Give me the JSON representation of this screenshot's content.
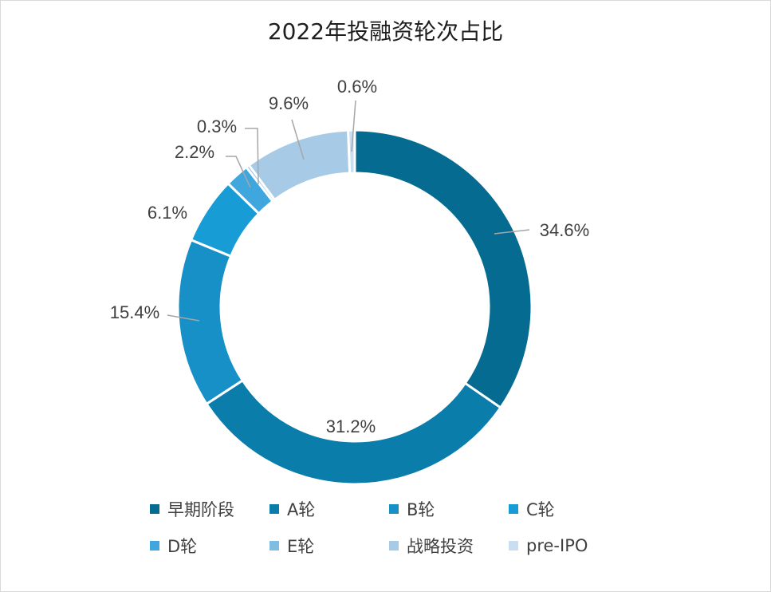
{
  "chart_data": {
    "type": "pie",
    "title": "2022年投融资轮次占比",
    "donut": true,
    "categories": [
      "早期阶段",
      "A轮",
      "B轮",
      "C轮",
      "D轮",
      "E轮",
      "战略投资",
      "pre-IPO"
    ],
    "values": [
      34.6,
      31.2,
      15.4,
      6.1,
      2.2,
      0.3,
      9.6,
      0.6
    ],
    "value_labels": [
      "34.6%",
      "31.2%",
      "15.4%",
      "6.1%",
      "2.2%",
      "0.3%",
      "9.6%",
      "0.6%"
    ],
    "colors": [
      "#056b91",
      "#0a7dab",
      "#1790c7",
      "#189cd6",
      "#3fa7de",
      "#7fbde3",
      "#a7cbe6",
      "#c9def0"
    ],
    "legend_position": "bottom",
    "start_angle_deg": 0,
    "direction": "clockwise"
  }
}
